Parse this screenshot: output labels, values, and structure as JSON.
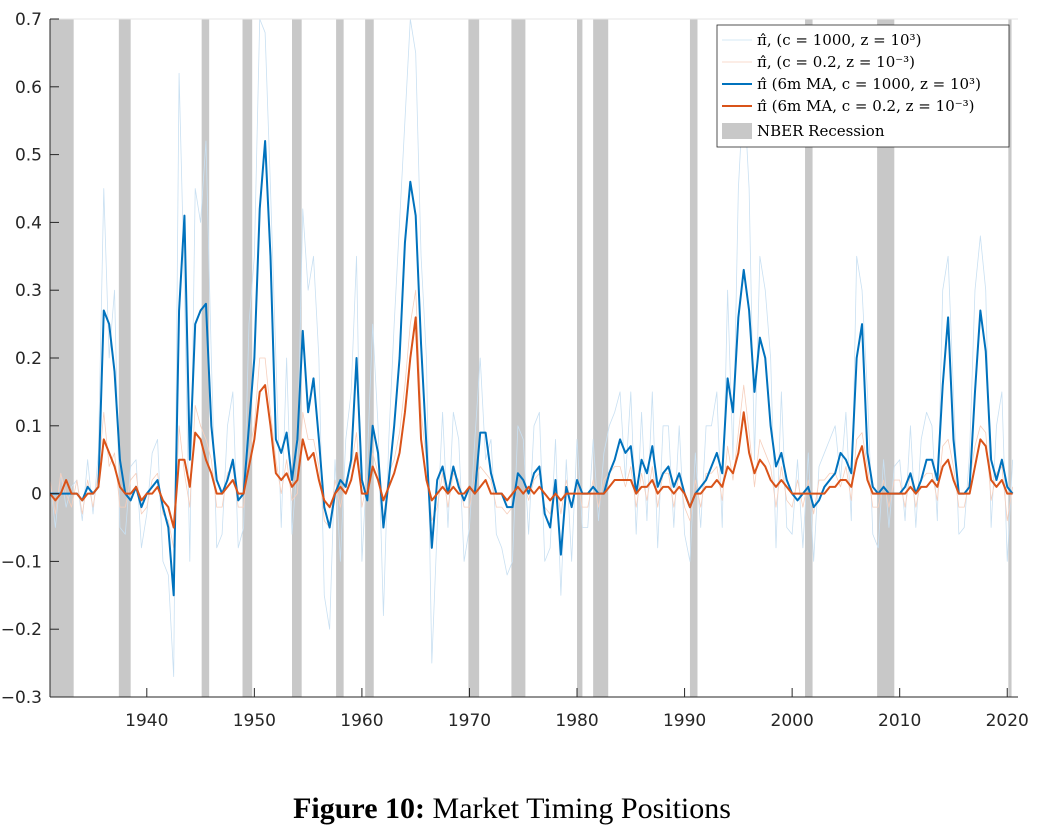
{
  "chart_data": {
    "type": "line",
    "figure_label": "Figure 10:",
    "title": "Market Timing Positions",
    "xlim": [
      1931,
      2021
    ],
    "ylim": [
      -0.3,
      0.7
    ],
    "xticks": [
      1940,
      1950,
      1960,
      1970,
      1980,
      1990,
      2000,
      2010,
      2020
    ],
    "yticks": [
      0.7,
      0.6,
      0.5,
      0.4,
      0.3,
      0.2,
      0.1,
      0,
      {
        "value": -0.1,
        "label": "−0.1"
      },
      {
        "value": -0.2,
        "label": "−0.2"
      },
      {
        "value": -0.3,
        "label": "−0.3"
      }
    ],
    "legend": "upper right",
    "recessions": {
      "name": "NBER Recession",
      "color": "#c8c8c8",
      "periods": [
        [
          1929.6,
          1933.2
        ],
        [
          1937.4,
          1938.5
        ],
        [
          1945.1,
          1945.8
        ],
        [
          1948.9,
          1949.8
        ],
        [
          1953.5,
          1954.4
        ],
        [
          1957.6,
          1958.3
        ],
        [
          1960.3,
          1961.1
        ],
        [
          1969.9,
          1970.9
        ],
        [
          1973.9,
          1975.2
        ],
        [
          1980.0,
          1980.5
        ],
        [
          1981.5,
          1982.9
        ],
        [
          1990.5,
          1991.2
        ],
        [
          2001.2,
          2001.9
        ],
        [
          2007.9,
          2009.5
        ],
        [
          2020.1,
          2020.4
        ]
      ]
    },
    "x": [
      1931,
      1931.5,
      1932,
      1932.5,
      1933,
      1933.5,
      1934,
      1934.5,
      1935,
      1935.5,
      1936,
      1936.5,
      1937,
      1937.5,
      1938,
      1938.5,
      1939,
      1939.5,
      1940,
      1940.5,
      1941,
      1941.5,
      1942,
      1942.5,
      1943,
      1943.5,
      1944,
      1944.5,
      1945,
      1945.5,
      1946,
      1946.5,
      1947,
      1947.5,
      1948,
      1948.5,
      1949,
      1949.5,
      1950,
      1950.5,
      1951,
      1951.5,
      1952,
      1952.5,
      1953,
      1953.5,
      1954,
      1954.5,
      1955,
      1955.5,
      1956,
      1956.5,
      1957,
      1957.5,
      1958,
      1958.5,
      1959,
      1959.5,
      1960,
      1960.5,
      1961,
      1961.5,
      1962,
      1962.5,
      1963,
      1963.5,
      1964,
      1964.5,
      1965,
      1965.5,
      1966,
      1966.5,
      1967,
      1967.5,
      1968,
      1968.5,
      1969,
      1969.5,
      1970,
      1970.5,
      1971,
      1971.5,
      1972,
      1972.5,
      1973,
      1973.5,
      1974,
      1974.5,
      1975,
      1975.5,
      1976,
      1976.5,
      1977,
      1977.5,
      1978,
      1978.5,
      1979,
      1979.5,
      1980,
      1980.5,
      1981,
      1981.5,
      1982,
      1982.5,
      1983,
      1983.5,
      1984,
      1984.5,
      1985,
      1985.5,
      1986,
      1986.5,
      1987,
      1987.5,
      1988,
      1988.5,
      1989,
      1989.5,
      1990,
      1990.5,
      1991,
      1991.5,
      1992,
      1992.5,
      1993,
      1993.5,
      1994,
      1994.5,
      1995,
      1995.5,
      1996,
      1996.5,
      1997,
      1997.5,
      1998,
      1998.5,
      1999,
      1999.5,
      2000,
      2000.5,
      2001,
      2001.5,
      2002,
      2002.5,
      2003,
      2003.5,
      2004,
      2004.5,
      2005,
      2005.5,
      2006,
      2006.5,
      2007,
      2007.5,
      2008,
      2008.5,
      2009,
      2009.5,
      2010,
      2010.5,
      2011,
      2011.5,
      2012,
      2012.5,
      2013,
      2013.5,
      2014,
      2014.5,
      2015,
      2015.5,
      2016,
      2016.5,
      2017,
      2017.5,
      2018,
      2018.5,
      2019,
      2019.5,
      2020,
      2020.5
    ],
    "series": [
      {
        "name": "π̂, (c = 1000, z = 10³)",
        "color": "#c9e0f2",
        "width": 0.8,
        "values": [
          0.02,
          -0.05,
          0.03,
          -0.02,
          0.01,
          0.02,
          -0.04,
          0.05,
          -0.03,
          0.06,
          0.45,
          0.2,
          0.3,
          -0.05,
          -0.06,
          0.04,
          0.05,
          -0.08,
          -0.03,
          0.06,
          0.08,
          -0.1,
          -0.12,
          -0.27,
          0.62,
          0.3,
          -0.1,
          0.45,
          0.4,
          0.52,
          0.2,
          -0.08,
          -0.06,
          0.1,
          0.15,
          -0.08,
          -0.05,
          0.25,
          0.35,
          0.7,
          0.68,
          0.45,
          0.2,
          -0.05,
          0.2,
          -0.06,
          0.05,
          0.42,
          0.3,
          0.35,
          0.2,
          -0.15,
          -0.2,
          0.05,
          -0.1,
          0.08,
          0.15,
          0.35,
          -0.1,
          0.05,
          0.25,
          0.1,
          -0.18,
          0.08,
          0.25,
          0.4,
          0.55,
          0.7,
          0.65,
          0.35,
          0.2,
          -0.25,
          -0.05,
          0.12,
          -0.05,
          0.12,
          0.08,
          -0.1,
          -0.05,
          0.08,
          0.2,
          0.05,
          0.08,
          -0.06,
          -0.08,
          -0.12,
          -0.1,
          0.1,
          0.08,
          -0.06,
          0.1,
          0.12,
          -0.1,
          -0.08,
          0.08,
          -0.15,
          0.05,
          -0.1,
          0.08,
          -0.05,
          -0.05,
          0.08,
          -0.04,
          0.06,
          0.1,
          0.12,
          0.15,
          0.02,
          0.15,
          -0.06,
          0.12,
          -0.04,
          0.15,
          -0.08,
          0.1,
          0.1,
          -0.05,
          0.1,
          -0.06,
          -0.1,
          0.06,
          -0.05,
          0.1,
          0.1,
          0.15,
          -0.05,
          0.3,
          0.05,
          0.45,
          0.6,
          0.45,
          0.05,
          0.35,
          0.3,
          0.2,
          -0.08,
          0.15,
          -0.05,
          -0.06,
          0.05,
          -0.08,
          0.06,
          -0.1,
          0.04,
          0.06,
          0.08,
          0.1,
          0.02,
          0.12,
          -0.04,
          0.35,
          0.3,
          0.15,
          -0.06,
          -0.08,
          0.05,
          -0.05,
          0.04,
          0.05,
          -0.04,
          0.1,
          -0.05,
          0.08,
          0.12,
          0.1,
          -0.04,
          0.3,
          0.35,
          0.15,
          -0.06,
          -0.05,
          0.06,
          0.3,
          0.38,
          0.3,
          -0.05,
          0.1,
          0.15,
          -0.1,
          0.05
        ]
      },
      {
        "name": "π̂, (c = 0.2, z = 10⁻³)",
        "color": "#f6cfbd",
        "width": 0.8,
        "values": [
          0.02,
          -0.03,
          0.03,
          0.0,
          -0.02,
          0.02,
          -0.03,
          0.02,
          -0.02,
          0.03,
          0.12,
          0.04,
          0.06,
          -0.02,
          -0.02,
          0.02,
          0.03,
          -0.03,
          -0.02,
          0.02,
          0.03,
          -0.03,
          -0.04,
          -0.08,
          0.1,
          0.03,
          -0.02,
          0.13,
          0.1,
          0.08,
          0.05,
          -0.02,
          -0.02,
          0.03,
          0.04,
          -0.02,
          -0.02,
          0.06,
          0.1,
          0.2,
          0.2,
          0.12,
          0.05,
          0.0,
          0.05,
          -0.01,
          0.0,
          0.12,
          0.08,
          0.08,
          0.04,
          -0.04,
          -0.05,
          0.02,
          -0.02,
          0.02,
          0.04,
          0.09,
          -0.02,
          0.02,
          0.06,
          0.03,
          -0.04,
          0.03,
          0.05,
          0.09,
          0.16,
          0.25,
          0.3,
          0.12,
          0.05,
          -0.04,
          -0.02,
          0.03,
          -0.02,
          0.03,
          0.02,
          -0.02,
          -0.02,
          0.02,
          0.04,
          0.03,
          0.02,
          -0.02,
          -0.02,
          -0.03,
          -0.02,
          0.03,
          0.02,
          -0.01,
          0.02,
          0.03,
          -0.02,
          -0.03,
          0.02,
          -0.03,
          0.02,
          -0.02,
          0.02,
          -0.02,
          -0.02,
          0.02,
          -0.02,
          0.02,
          0.03,
          0.04,
          0.04,
          0.01,
          0.04,
          -0.02,
          0.03,
          -0.01,
          0.04,
          -0.02,
          0.03,
          0.03,
          -0.02,
          0.03,
          -0.02,
          -0.04,
          0.02,
          -0.02,
          0.03,
          0.03,
          0.04,
          -0.01,
          0.07,
          0.02,
          0.09,
          0.16,
          0.09,
          0.01,
          0.08,
          0.06,
          0.04,
          -0.02,
          0.04,
          -0.01,
          -0.02,
          0.02,
          -0.02,
          0.02,
          -0.03,
          0.02,
          0.02,
          0.03,
          0.03,
          0.01,
          0.04,
          -0.01,
          0.08,
          0.09,
          0.04,
          -0.02,
          -0.02,
          0.02,
          -0.02,
          0.02,
          0.02,
          -0.02,
          0.03,
          -0.02,
          0.02,
          0.03,
          0.03,
          -0.01,
          0.07,
          0.08,
          0.04,
          -0.02,
          -0.02,
          0.02,
          0.07,
          0.1,
          0.09,
          -0.01,
          0.03,
          0.04,
          -0.04,
          0.01
        ]
      },
      {
        "name": "π̂ (6m MA, c = 1000, z = 10³)",
        "color": "#0072bd",
        "width": 2,
        "values": [
          0,
          0,
          0,
          0,
          0,
          0,
          -0.01,
          0.01,
          0.0,
          0.01,
          0.27,
          0.25,
          0.18,
          0.05,
          0.0,
          -0.01,
          0.01,
          -0.02,
          0.0,
          0.01,
          0.02,
          -0.02,
          -0.05,
          -0.15,
          0.27,
          0.41,
          0.05,
          0.25,
          0.27,
          0.28,
          0.1,
          0.02,
          0.0,
          0.02,
          0.05,
          -0.01,
          0.0,
          0.1,
          0.2,
          0.42,
          0.52,
          0.35,
          0.08,
          0.06,
          0.09,
          0.02,
          0.08,
          0.24,
          0.12,
          0.17,
          0.08,
          -0.02,
          -0.05,
          0.0,
          0.02,
          0.01,
          0.05,
          0.2,
          0.02,
          -0.01,
          0.1,
          0.06,
          -0.05,
          0.02,
          0.1,
          0.2,
          0.37,
          0.46,
          0.41,
          0.22,
          0.07,
          -0.08,
          0.02,
          0.04,
          0.0,
          0.04,
          0.01,
          -0.01,
          0.01,
          0.0,
          0.09,
          0.09,
          0.03,
          0.0,
          0.0,
          -0.02,
          -0.02,
          0.03,
          0.02,
          0.0,
          0.03,
          0.04,
          -0.03,
          -0.05,
          0.02,
          -0.09,
          0.01,
          -0.02,
          0.02,
          0.0,
          0.0,
          0.01,
          0.0,
          0.0,
          0.03,
          0.05,
          0.08,
          0.06,
          0.07,
          0.0,
          0.05,
          0.03,
          0.07,
          0.01,
          0.03,
          0.04,
          0.01,
          0.03,
          0.0,
          -0.02,
          0.0,
          0.01,
          0.02,
          0.04,
          0.06,
          0.03,
          0.17,
          0.12,
          0.26,
          0.33,
          0.27,
          0.15,
          0.23,
          0.2,
          0.1,
          0.04,
          0.06,
          0.02,
          0.0,
          -0.01,
          0.0,
          0.01,
          -0.02,
          -0.01,
          0.01,
          0.02,
          0.03,
          0.06,
          0.05,
          0.03,
          0.2,
          0.25,
          0.06,
          0.01,
          0.0,
          0.01,
          0.0,
          0.0,
          0.0,
          0.01,
          0.03,
          0.0,
          0.02,
          0.05,
          0.05,
          0.02,
          0.16,
          0.26,
          0.08,
          0.0,
          0.0,
          0.01,
          0.15,
          0.27,
          0.21,
          0.05,
          0.02,
          0.05,
          0.01,
          0.0
        ]
      },
      {
        "name": "π̂ (6m MA, c = 0.2, z = 10⁻³)",
        "color": "#d95319",
        "width": 2,
        "values": [
          0,
          -0.01,
          0,
          0.02,
          0,
          0,
          -0.01,
          0.0,
          0,
          0.01,
          0.08,
          0.06,
          0.04,
          0.01,
          0.0,
          0.0,
          0.01,
          -0.01,
          0.0,
          0.0,
          0.01,
          -0.01,
          -0.02,
          -0.05,
          0.05,
          0.05,
          0.01,
          0.09,
          0.08,
          0.05,
          0.03,
          0.0,
          0.0,
          0.01,
          0.02,
          0.0,
          0.0,
          0.04,
          0.08,
          0.15,
          0.16,
          0.1,
          0.03,
          0.02,
          0.03,
          0.01,
          0.02,
          0.08,
          0.05,
          0.06,
          0.02,
          -0.01,
          -0.02,
          0.0,
          0.01,
          0.0,
          0.02,
          0.06,
          0.0,
          0.0,
          0.04,
          0.02,
          -0.01,
          0.01,
          0.03,
          0.06,
          0.12,
          0.2,
          0.26,
          0.08,
          0.02,
          -0.01,
          0.0,
          0.01,
          0.0,
          0.01,
          0.0,
          0.0,
          0.01,
          0.0,
          0.01,
          0.02,
          0.0,
          0.0,
          0.0,
          -0.01,
          0.0,
          0.01,
          0.0,
          0.01,
          0.0,
          0.01,
          0.0,
          -0.01,
          0.0,
          -0.01,
          0.0,
          0.0,
          0.0,
          0.0,
          0.0,
          0.0,
          0.0,
          0.0,
          0.01,
          0.02,
          0.02,
          0.02,
          0.02,
          0.0,
          0.01,
          0.01,
          0.02,
          0.0,
          0.01,
          0.01,
          0.0,
          0.01,
          0.0,
          -0.02,
          0.0,
          0.0,
          0.01,
          0.01,
          0.02,
          0.01,
          0.04,
          0.03,
          0.06,
          0.12,
          0.06,
          0.03,
          0.05,
          0.04,
          0.02,
          0.01,
          0.02,
          0.01,
          0.0,
          0.0,
          0.0,
          0.0,
          0.0,
          0.0,
          0.0,
          0.01,
          0.01,
          0.02,
          0.02,
          0.01,
          0.05,
          0.07,
          0.02,
          0.0,
          0.0,
          0.0,
          0.0,
          0.0,
          0.0,
          0.0,
          0.01,
          0.0,
          0.01,
          0.01,
          0.02,
          0.01,
          0.04,
          0.05,
          0.02,
          0.0,
          0.0,
          0.0,
          0.04,
          0.08,
          0.07,
          0.02,
          0.01,
          0.02,
          0.0,
          0.0
        ]
      }
    ]
  }
}
